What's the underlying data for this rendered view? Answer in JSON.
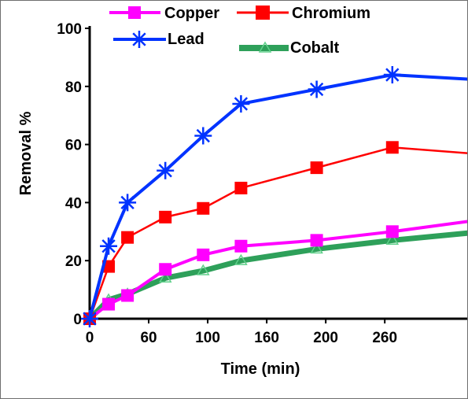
{
  "chart_data": {
    "type": "line",
    "xlabel": "Time (min)",
    "ylabel": "Removal %",
    "xlim": [
      0,
      300
    ],
    "ylim": [
      0,
      100
    ],
    "x_ticks": [
      0,
      60,
      100,
      160,
      200,
      260
    ],
    "y_ticks": [
      0,
      20,
      40,
      60,
      80,
      100
    ],
    "grid": false,
    "legend_position": "top",
    "series": [
      {
        "name": "Copper",
        "color": "#ff00ff",
        "marker": "square",
        "x": [
          0,
          15,
          30,
          60,
          90,
          120,
          180,
          240,
          300
        ],
        "y": [
          0,
          5,
          8,
          17,
          22,
          25,
          27,
          30,
          33.5
        ]
      },
      {
        "name": "Chromium",
        "color": "#ff0000",
        "marker": "square",
        "x": [
          0,
          15,
          30,
          60,
          90,
          120,
          180,
          240,
          300
        ],
        "y": [
          0,
          18,
          28,
          35,
          38,
          45,
          52,
          59,
          57
        ]
      },
      {
        "name": "Lead",
        "color": "#0033ff",
        "marker": "star",
        "x": [
          0,
          15,
          30,
          60,
          90,
          120,
          180,
          240,
          300
        ],
        "y": [
          0,
          25,
          40,
          51,
          63,
          74,
          79,
          84,
          82.5
        ]
      },
      {
        "name": "Cobalt",
        "color": "#2ea05a",
        "marker": "triangle",
        "x": [
          0,
          15,
          30,
          60,
          90,
          120,
          180,
          240,
          300
        ],
        "y": [
          0,
          6.5,
          8.5,
          14,
          16.5,
          20,
          24,
          27,
          29.5
        ]
      }
    ]
  }
}
